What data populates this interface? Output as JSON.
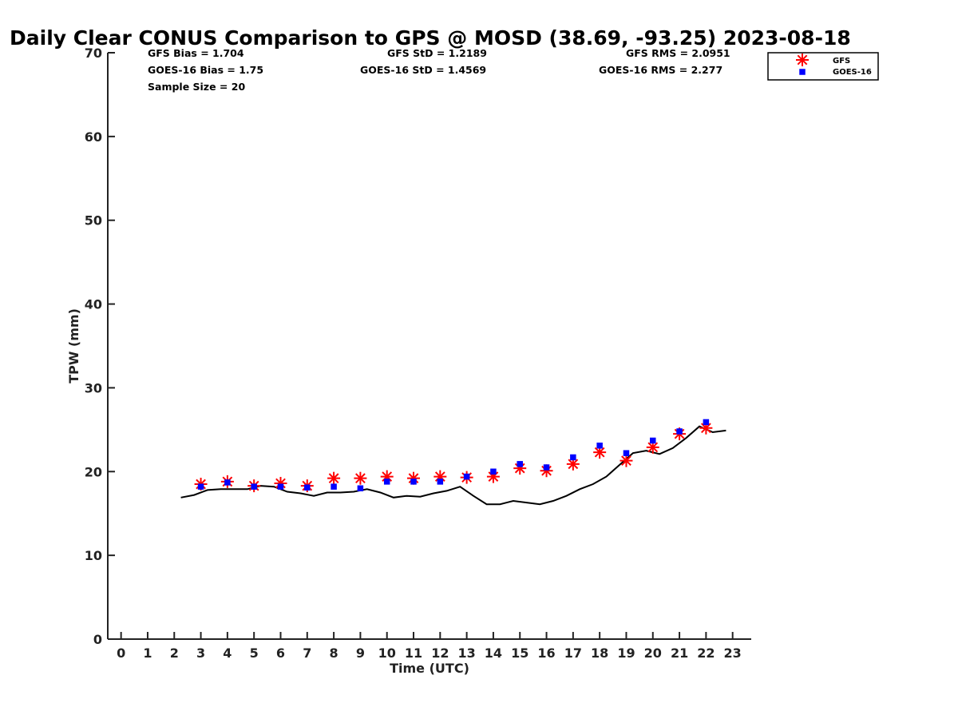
{
  "chart_data": {
    "type": "scatter",
    "title": "Daily Clear CONUS Comparison to GPS @ MOSD (38.69, -93.25) 2023-08-18",
    "xlabel": "Time (UTC)",
    "ylabel": "TPW (mm)",
    "xlim": [
      -0.5,
      23.7
    ],
    "ylim": [
      0,
      70
    ],
    "xticks": [
      0,
      1,
      2,
      3,
      4,
      5,
      6,
      7,
      8,
      9,
      10,
      11,
      12,
      13,
      14,
      15,
      16,
      17,
      18,
      19,
      20,
      21,
      22,
      23
    ],
    "yticks": [
      0,
      10,
      20,
      30,
      40,
      50,
      60,
      70
    ],
    "grid": false,
    "legend_position": "top-right",
    "stats": {
      "gfs_bias": "GFS Bias = 1.704",
      "goes_bias": "GOES-16 Bias = 1.75",
      "sample_size": "Sample Size = 20",
      "gfs_std": "GFS StD = 1.2189",
      "goes_std": "GOES-16 StD = 1.4569",
      "gfs_rms": "GFS RMS = 2.0951",
      "goes_rms": "GOES-16 RMS = 2.277"
    },
    "series": [
      {
        "name": "GFS",
        "marker": "asterisk",
        "color": "#ff0000",
        "x": [
          3,
          4,
          5,
          6,
          7,
          8,
          9,
          10,
          11,
          12,
          13,
          14,
          15,
          16,
          17,
          18,
          19,
          20,
          21,
          22
        ],
        "y": [
          18.5,
          18.8,
          18.3,
          18.6,
          18.3,
          19.2,
          19.2,
          19.4,
          19.2,
          19.4,
          19.3,
          19.4,
          20.4,
          20.1,
          20.9,
          22.3,
          21.3,
          22.9,
          24.5,
          25.2
        ]
      },
      {
        "name": "GOES-16",
        "marker": "square",
        "color": "#0000ff",
        "x": [
          3,
          4,
          5,
          6,
          7,
          8,
          9,
          10,
          11,
          12,
          13,
          14,
          15,
          16,
          17,
          18,
          19,
          20,
          21,
          22
        ],
        "y": [
          18.2,
          18.7,
          18.2,
          18.2,
          18.1,
          18.2,
          18.0,
          18.8,
          18.8,
          18.8,
          19.4,
          20.0,
          20.9,
          20.5,
          21.7,
          23.1,
          22.2,
          23.7,
          24.8,
          25.9
        ]
      },
      {
        "marker": "line",
        "color": "#000000",
        "x": [
          2.25,
          2.75,
          3.25,
          3.75,
          4.25,
          4.75,
          5.25,
          5.75,
          6.25,
          6.75,
          7.25,
          7.75,
          8.25,
          8.75,
          9.25,
          9.75,
          10.25,
          10.75,
          11.25,
          11.75,
          12.25,
          12.75,
          13.25,
          13.75,
          14.25,
          14.75,
          15.25,
          15.75,
          16.25,
          16.75,
          17.25,
          17.75,
          18.25,
          18.75,
          19.25,
          19.75,
          20.25,
          20.75,
          21.25,
          21.75,
          22.25,
          22.75
        ],
        "y": [
          16.9,
          17.2,
          17.8,
          17.9,
          17.9,
          17.9,
          18.3,
          18.2,
          17.6,
          17.4,
          17.1,
          17.5,
          17.5,
          17.6,
          17.9,
          17.5,
          16.9,
          17.1,
          17.0,
          17.4,
          17.7,
          18.2,
          17.1,
          16.1,
          16.1,
          16.5,
          16.3,
          16.1,
          16.5,
          17.1,
          17.9,
          18.5,
          19.4,
          20.8,
          22.2,
          22.5,
          22.1,
          22.8,
          24.0,
          25.4,
          24.7,
          24.9
        ]
      }
    ]
  }
}
